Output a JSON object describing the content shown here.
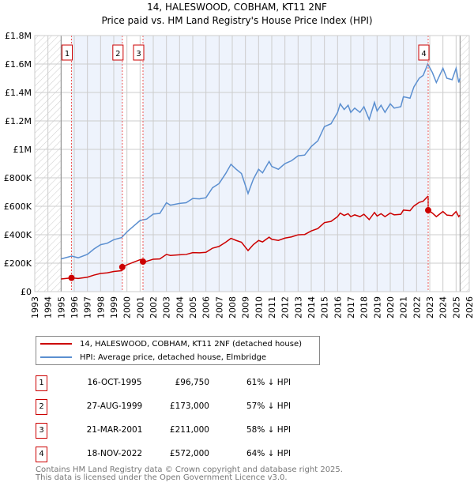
{
  "title": "14, HALESWOOD, COBHAM, KT11 2NF",
  "subtitle": "Price paid vs. HM Land Registry's House Price Index (HPI)",
  "colors": {
    "property": "#cc0000",
    "hpi": "#5b8fd0",
    "shade": "#eef3fc"
  },
  "legend": [
    {
      "label": "14, HALESWOOD, COBHAM, KT11 2NF (detached house)"
    },
    {
      "label": "HPI: Average price, detached house, Elmbridge"
    }
  ],
  "sales": [
    {
      "num": "1",
      "date": "16-OCT-1995",
      "price": "£96,750",
      "hpi": "61% ↓ HPI",
      "t": 1995.79,
      "value": 96750
    },
    {
      "num": "2",
      "date": "27-AUG-1999",
      "price": "£173,000",
      "hpi": "57% ↓ HPI",
      "t": 1999.65,
      "value": 173000
    },
    {
      "num": "3",
      "date": "21-MAR-2001",
      "price": "£211,000",
      "hpi": "58% ↓ HPI",
      "t": 2001.22,
      "value": 211000
    },
    {
      "num": "4",
      "date": "18-NOV-2022",
      "price": "£572,000",
      "hpi": "64% ↓ HPI",
      "t": 2022.88,
      "value": 572000
    }
  ],
  "footer": [
    "Contains HM Land Registry data © Crown copyright and database right 2025.",
    "This data is licensed under the Open Government Licence v3.0."
  ],
  "chart_data": {
    "type": "line",
    "xlim": [
      1993,
      2026
    ],
    "ylim": [
      0,
      1800000
    ],
    "xticks": [
      "1993",
      "1994",
      "1995",
      "1996",
      "1997",
      "1998",
      "1999",
      "2000",
      "2001",
      "2002",
      "2003",
      "2004",
      "2005",
      "2006",
      "2007",
      "2008",
      "2009",
      "2010",
      "2011",
      "2012",
      "2013",
      "2014",
      "2015",
      "2016",
      "2017",
      "2018",
      "2019",
      "2020",
      "2021",
      "2022",
      "2023",
      "2024",
      "2025",
      "2026"
    ],
    "yticks": [
      {
        "v": 0,
        "label": "£0"
      },
      {
        "v": 200000,
        "label": "£200K"
      },
      {
        "v": 400000,
        "label": "£400K"
      },
      {
        "v": 600000,
        "label": "£600K"
      },
      {
        "v": 800000,
        "label": "£800K"
      },
      {
        "v": 1000000,
        "label": "£1M"
      },
      {
        "v": 1200000,
        "label": "£1.2M"
      },
      {
        "v": 1400000,
        "label": "£1.4M"
      },
      {
        "v": 1600000,
        "label": "£1.6M"
      },
      {
        "v": 1800000,
        "label": "£1.8M"
      }
    ],
    "data_range": [
      1995,
      2025.3
    ],
    "hpi": [
      [
        1995,
        230
      ],
      [
        1995.8,
        250
      ],
      [
        1996.3,
        238
      ],
      [
        1997,
        262
      ],
      [
        1997.5,
        300
      ],
      [
        1998,
        330
      ],
      [
        1998.5,
        340
      ],
      [
        1999,
        365
      ],
      [
        1999.6,
        380
      ],
      [
        2000,
        420
      ],
      [
        2000.5,
        460
      ],
      [
        2001,
        500
      ],
      [
        2001.5,
        510
      ],
      [
        2002,
        545
      ],
      [
        2002.5,
        550
      ],
      [
        2003,
        625
      ],
      [
        2003.3,
        608
      ],
      [
        2004,
        620
      ],
      [
        2004.5,
        625
      ],
      [
        2005,
        655
      ],
      [
        2005.5,
        652
      ],
      [
        2006,
        660
      ],
      [
        2006.5,
        730
      ],
      [
        2007,
        760
      ],
      [
        2007.5,
        830
      ],
      [
        2007.9,
        895
      ],
      [
        2008.3,
        860
      ],
      [
        2008.7,
        830
      ],
      [
        2009.2,
        690
      ],
      [
        2009.6,
        790
      ],
      [
        2010,
        860
      ],
      [
        2010.3,
        835
      ],
      [
        2010.8,
        915
      ],
      [
        2011,
        880
      ],
      [
        2011.5,
        860
      ],
      [
        2012,
        900
      ],
      [
        2012.5,
        920
      ],
      [
        2013,
        955
      ],
      [
        2013.5,
        960
      ],
      [
        2014,
        1020
      ],
      [
        2014.5,
        1060
      ],
      [
        2015,
        1160
      ],
      [
        2015.5,
        1180
      ],
      [
        2016,
        1260
      ],
      [
        2016.2,
        1320
      ],
      [
        2016.5,
        1280
      ],
      [
        2016.8,
        1310
      ],
      [
        2017,
        1260
      ],
      [
        2017.3,
        1290
      ],
      [
        2017.7,
        1260
      ],
      [
        2018,
        1300
      ],
      [
        2018.4,
        1210
      ],
      [
        2018.8,
        1330
      ],
      [
        2019,
        1270
      ],
      [
        2019.3,
        1310
      ],
      [
        2019.6,
        1260
      ],
      [
        2020,
        1320
      ],
      [
        2020.3,
        1290
      ],
      [
        2020.8,
        1300
      ],
      [
        2021,
        1370
      ],
      [
        2021.5,
        1360
      ],
      [
        2021.8,
        1440
      ],
      [
        2022.2,
        1500
      ],
      [
        2022.5,
        1520
      ],
      [
        2022.85,
        1600
      ],
      [
        2023.2,
        1540
      ],
      [
        2023.5,
        1470
      ],
      [
        2024,
        1570
      ],
      [
        2024.3,
        1500
      ],
      [
        2024.7,
        1490
      ],
      [
        2025,
        1570
      ],
      [
        2025.2,
        1470
      ],
      [
        2025.3,
        1500
      ]
    ]
  }
}
